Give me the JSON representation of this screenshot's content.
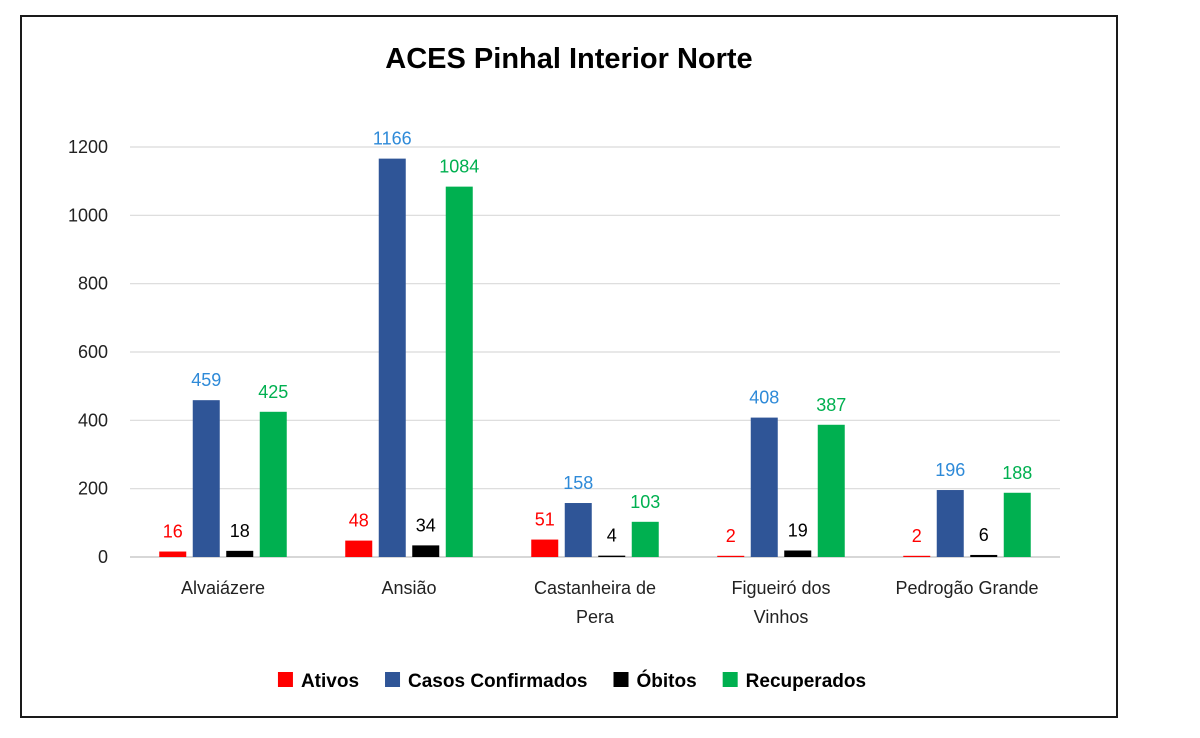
{
  "chart_data": {
    "type": "bar",
    "title": "ACES Pinhal Interior Norte",
    "categories": [
      [
        "Alvaiázere"
      ],
      [
        "Ansião"
      ],
      [
        "Castanheira de",
        "Pera"
      ],
      [
        "Figueiró dos",
        "Vinhos"
      ],
      [
        "Pedrogão Grande"
      ]
    ],
    "series": [
      {
        "name": "Ativos",
        "color": "#ff0000",
        "label_color": "#ff0000",
        "values": [
          16,
          48,
          51,
          2,
          2
        ]
      },
      {
        "name": "Casos Confirmados",
        "color": "#2f5597",
        "label_color": "#2e8ad8",
        "values": [
          459,
          1166,
          158,
          408,
          196
        ]
      },
      {
        "name": "Óbitos",
        "color": "#000000",
        "label_color": "#000000",
        "values": [
          18,
          34,
          4,
          19,
          6
        ]
      },
      {
        "name": "Recuperados",
        "color": "#00b050",
        "label_color": "#00b050",
        "values": [
          425,
          1084,
          103,
          387,
          188
        ]
      }
    ],
    "y_ticks": [
      0,
      200,
      400,
      600,
      800,
      1000,
      1200
    ],
    "ylim": [
      0,
      1200
    ],
    "grid": true,
    "legend_position": "bottom"
  }
}
